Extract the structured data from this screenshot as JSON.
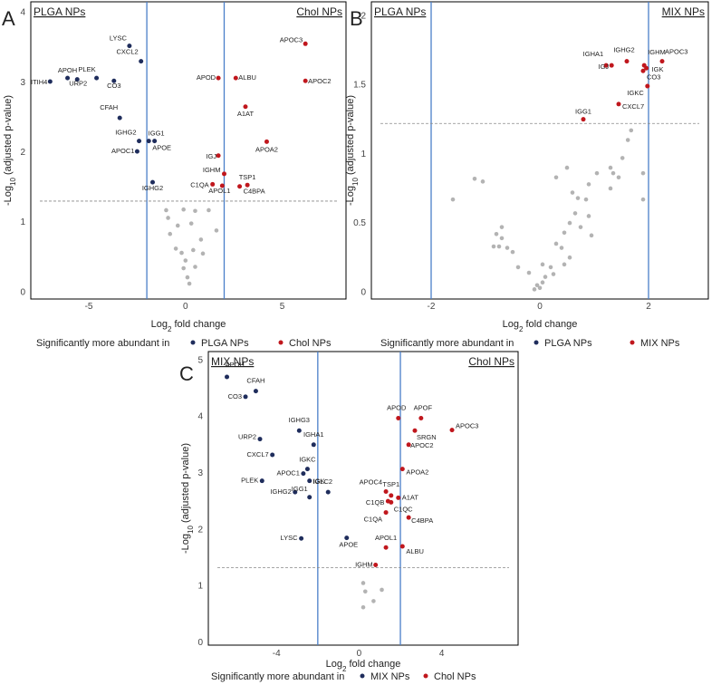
{
  "colors": {
    "sig_left": "#1f2d5c",
    "sig_right": "#c0171d",
    "nonsig": "#b3b3b3",
    "vline": "#4a7fc9",
    "threshold": "#888888"
  },
  "chart_data": [
    {
      "panel": "A",
      "type": "scatter",
      "left_group": "PLGA NPs",
      "right_group": "Chol NPs",
      "xlabel_parts": {
        "pre": "Log",
        "sub": "2",
        "post": " fold change"
      },
      "ylabel_parts": {
        "pre": "-Log",
        "sub": "10",
        "post": " (adjusted p-value)"
      },
      "xlim": [
        -8,
        8.3
      ],
      "ylim": [
        -0.1,
        4.15
      ],
      "xticks": [
        -5,
        0,
        5
      ],
      "yticks": [
        0,
        1,
        2,
        3,
        4
      ],
      "fc_lines": [
        -2,
        2
      ],
      "threshold": 1.3,
      "legend_text": "Significantly more abundant in",
      "points_left": [
        {
          "x": -2.9,
          "y": 3.52,
          "label": "LYSC"
        },
        {
          "x": -2.3,
          "y": 3.3,
          "label": "CXCL2"
        },
        {
          "x": -6.1,
          "y": 3.06,
          "label": "APOH"
        },
        {
          "x": -7.0,
          "y": 3.01,
          "label": "ITIH4"
        },
        {
          "x": -5.6,
          "y": 3.04,
          "label": "URP2"
        },
        {
          "x": -4.6,
          "y": 3.06,
          "label": "PLEK"
        },
        {
          "x": -3.7,
          "y": 3.02,
          "label": "CO3"
        },
        {
          "x": -3.4,
          "y": 2.49,
          "label": "CFAH"
        },
        {
          "x": -1.6,
          "y": 2.16,
          "label": "IGG1"
        },
        {
          "x": -2.4,
          "y": 2.16,
          "label": "IGHG2"
        },
        {
          "x": -1.9,
          "y": 2.16,
          "label": "APOE"
        },
        {
          "x": -2.5,
          "y": 2.01,
          "label": "APOC1"
        },
        {
          "x": -1.7,
          "y": 1.57,
          "label": "IGHG2"
        }
      ],
      "points_right": [
        {
          "x": 6.2,
          "y": 3.55,
          "label": "APOC3"
        },
        {
          "x": 1.7,
          "y": 3.06,
          "label": "APOD"
        },
        {
          "x": 2.6,
          "y": 3.06,
          "label": "ALBU"
        },
        {
          "x": 6.2,
          "y": 3.02,
          "label": "APOC2"
        },
        {
          "x": 3.1,
          "y": 2.65,
          "label": "A1AT"
        },
        {
          "x": 4.2,
          "y": 2.15,
          "label": "APOA2"
        },
        {
          "x": 1.7,
          "y": 1.95,
          "label": "IGJ"
        },
        {
          "x": 2.0,
          "y": 1.69,
          "label": "IGHM"
        },
        {
          "x": 3.2,
          "y": 1.53,
          "label": "TSP1"
        },
        {
          "x": 1.4,
          "y": 1.54,
          "label": "C1QA"
        },
        {
          "x": 1.9,
          "y": 1.52,
          "label": "APOL1"
        },
        {
          "x": 2.8,
          "y": 1.51,
          "label": "C4BPA"
        }
      ],
      "points_nonsig": [
        {
          "x": -1.0,
          "y": 1.17
        },
        {
          "x": -0.1,
          "y": 1.18
        },
        {
          "x": 0.5,
          "y": 1.16
        },
        {
          "x": 1.2,
          "y": 1.17
        },
        {
          "x": -0.9,
          "y": 1.06
        },
        {
          "x": -0.4,
          "y": 0.95
        },
        {
          "x": 0.3,
          "y": 0.98
        },
        {
          "x": 1.6,
          "y": 0.88
        },
        {
          "x": -0.8,
          "y": 0.83
        },
        {
          "x": 0.8,
          "y": 0.75
        },
        {
          "x": -0.5,
          "y": 0.62
        },
        {
          "x": -0.2,
          "y": 0.56
        },
        {
          "x": 0.4,
          "y": 0.6
        },
        {
          "x": 0.9,
          "y": 0.55
        },
        {
          "x": 0.0,
          "y": 0.45
        },
        {
          "x": -0.1,
          "y": 0.34
        },
        {
          "x": 0.5,
          "y": 0.36
        },
        {
          "x": 0.1,
          "y": 0.21
        },
        {
          "x": 0.2,
          "y": 0.12
        }
      ]
    },
    {
      "panel": "B",
      "type": "scatter",
      "left_group": "PLGA NPs",
      "right_group": "MIX NPs",
      "xlabel_parts": {
        "pre": "Log",
        "sub": "2",
        "post": " fold change"
      },
      "ylabel_parts": {
        "pre": "-Log",
        "sub": "10",
        "post": " (adjusted p-value)"
      },
      "xlim": [
        -3.1,
        3.1
      ],
      "ylim": [
        -0.05,
        2.1
      ],
      "xticks": [
        -2,
        0,
        2
      ],
      "yticks": [
        0,
        0.5,
        1,
        1.5,
        2
      ],
      "fc_lines": [
        -2,
        2
      ],
      "threshold": 1.22,
      "legend_text": "Significantly more abundant in",
      "points_left": [],
      "points_right": [
        {
          "x": 1.22,
          "y": 1.64,
          "label": "IGHA1"
        },
        {
          "x": 1.32,
          "y": 1.64,
          "label": "IGJ"
        },
        {
          "x": 1.6,
          "y": 1.67,
          "label": "IGHG2"
        },
        {
          "x": 1.92,
          "y": 1.64,
          "label": "IGHM"
        },
        {
          "x": 2.25,
          "y": 1.67,
          "label": "APOC3"
        },
        {
          "x": 1.96,
          "y": 1.62,
          "label": "IGK"
        },
        {
          "x": 1.9,
          "y": 1.6,
          "label": "CO3"
        },
        {
          "x": 1.98,
          "y": 1.49,
          "label": "IGKC"
        },
        {
          "x": 1.45,
          "y": 1.36,
          "label": "CXCL7"
        },
        {
          "x": 0.8,
          "y": 1.25,
          "label": "IGG1"
        }
      ],
      "points_nonsig": [
        {
          "x": 1.68,
          "y": 1.17
        },
        {
          "x": 1.62,
          "y": 1.1
        },
        {
          "x": 1.52,
          "y": 0.97
        },
        {
          "x": 1.9,
          "y": 0.86
        },
        {
          "x": 1.3,
          "y": 0.9
        },
        {
          "x": 1.35,
          "y": 0.86
        },
        {
          "x": 1.45,
          "y": 0.83
        },
        {
          "x": 1.3,
          "y": 0.75
        },
        {
          "x": 1.05,
          "y": 0.86
        },
        {
          "x": 0.5,
          "y": 0.9
        },
        {
          "x": 0.3,
          "y": 0.83
        },
        {
          "x": 0.9,
          "y": 0.78
        },
        {
          "x": 0.6,
          "y": 0.72
        },
        {
          "x": 0.7,
          "y": 0.68
        },
        {
          "x": 0.85,
          "y": 0.67
        },
        {
          "x": 1.9,
          "y": 0.67
        },
        {
          "x": -1.6,
          "y": 0.67
        },
        {
          "x": -1.2,
          "y": 0.82
        },
        {
          "x": -1.05,
          "y": 0.8
        },
        {
          "x": 0.65,
          "y": 0.57
        },
        {
          "x": 0.9,
          "y": 0.55
        },
        {
          "x": 0.55,
          "y": 0.5
        },
        {
          "x": 0.75,
          "y": 0.47
        },
        {
          "x": 0.45,
          "y": 0.43
        },
        {
          "x": 0.95,
          "y": 0.41
        },
        {
          "x": 0.3,
          "y": 0.35
        },
        {
          "x": 0.4,
          "y": 0.32
        },
        {
          "x": 0.55,
          "y": 0.25
        },
        {
          "x": 0.45,
          "y": 0.2
        },
        {
          "x": 0.2,
          "y": 0.18
        },
        {
          "x": 0.25,
          "y": 0.13
        },
        {
          "x": 0.1,
          "y": 0.11
        },
        {
          "x": 0.05,
          "y": 0.07
        },
        {
          "x": -0.05,
          "y": 0.05
        },
        {
          "x": -0.1,
          "y": 0.02
        },
        {
          "x": 0.0,
          "y": 0.03
        },
        {
          "x": -0.2,
          "y": 0.14
        },
        {
          "x": -0.4,
          "y": 0.18
        },
        {
          "x": -0.7,
          "y": 0.47
        },
        {
          "x": -0.8,
          "y": 0.42
        },
        {
          "x": -0.7,
          "y": 0.39
        },
        {
          "x": -0.85,
          "y": 0.33
        },
        {
          "x": -0.75,
          "y": 0.33
        },
        {
          "x": -0.6,
          "y": 0.32
        },
        {
          "x": -0.5,
          "y": 0.29
        },
        {
          "x": 0.05,
          "y": 0.2
        }
      ]
    },
    {
      "panel": "C",
      "type": "scatter",
      "left_group": "MIX NPs",
      "right_group": "Chol NPs",
      "xlabel_parts": {
        "pre": "Log",
        "sub": "2",
        "post": " fold change"
      },
      "ylabel_parts": {
        "pre": "-Log",
        "sub": "10",
        "post": " (adjusted p-value)"
      },
      "xlim": [
        -7.3,
        7.7
      ],
      "ylim": [
        -0.05,
        5.15
      ],
      "xticks": [
        -4,
        0,
        4
      ],
      "yticks": [
        0,
        1,
        2,
        3,
        4,
        5
      ],
      "fc_lines": [
        -2,
        2
      ],
      "threshold": 1.32,
      "legend_text": "Significantly more abundant in",
      "points_left": [
        {
          "x": -6.4,
          "y": 4.7,
          "label": "APOH"
        },
        {
          "x": -5.0,
          "y": 4.45,
          "label": "CFAH"
        },
        {
          "x": -5.5,
          "y": 4.35,
          "label": "CO3"
        },
        {
          "x": -2.9,
          "y": 3.75,
          "label": "IGHG3"
        },
        {
          "x": -2.2,
          "y": 3.5,
          "label": "IGHA1"
        },
        {
          "x": -4.8,
          "y": 3.6,
          "label": "URP2"
        },
        {
          "x": -4.2,
          "y": 3.32,
          "label": "CXCL7"
        },
        {
          "x": -2.5,
          "y": 3.07,
          "label": "IGKC"
        },
        {
          "x": -2.7,
          "y": 2.99,
          "label": "APOC1"
        },
        {
          "x": -2.4,
          "y": 2.86,
          "label": "IGK"
        },
        {
          "x": -4.7,
          "y": 2.86,
          "label": "PLEK"
        },
        {
          "x": -3.1,
          "y": 2.66,
          "label": "IGHG2"
        },
        {
          "x": -1.5,
          "y": 2.66,
          "label": "IGLC2"
        },
        {
          "x": -2.4,
          "y": 2.57,
          "label": "IGG1"
        },
        {
          "x": -2.8,
          "y": 1.84,
          "label": "LYSC"
        },
        {
          "x": -0.6,
          "y": 1.85,
          "label": "APOE"
        }
      ],
      "points_right": [
        {
          "x": 1.9,
          "y": 3.97,
          "label": "APOD"
        },
        {
          "x": 3.0,
          "y": 3.97,
          "label": "APOF"
        },
        {
          "x": 4.5,
          "y": 3.76,
          "label": "APOC3"
        },
        {
          "x": 2.7,
          "y": 3.75,
          "label": "SRGN"
        },
        {
          "x": 2.4,
          "y": 3.5,
          "label": "APOC2"
        },
        {
          "x": 2.1,
          "y": 3.07,
          "label": "APOA2"
        },
        {
          "x": 1.3,
          "y": 2.67,
          "label": "APOC4"
        },
        {
          "x": 1.55,
          "y": 2.6,
          "label": "TSP1"
        },
        {
          "x": 1.9,
          "y": 2.56,
          "label": "A1AT"
        },
        {
          "x": 1.4,
          "y": 2.5,
          "label": "C1QB"
        },
        {
          "x": 1.55,
          "y": 2.48,
          "label": "C1QC"
        },
        {
          "x": 1.3,
          "y": 2.3,
          "label": "C1QA"
        },
        {
          "x": 2.4,
          "y": 2.21,
          "label": "C4BPA"
        },
        {
          "x": 1.3,
          "y": 1.68,
          "label": "APOL1"
        },
        {
          "x": 2.1,
          "y": 1.7,
          "label": "ALBU"
        },
        {
          "x": 0.8,
          "y": 1.37,
          "label": "IGHM"
        }
      ],
      "points_nonsig": [
        {
          "x": 0.2,
          "y": 1.05
        },
        {
          "x": 1.1,
          "y": 0.93
        },
        {
          "x": 0.3,
          "y": 0.9
        },
        {
          "x": 0.7,
          "y": 0.73
        },
        {
          "x": 0.2,
          "y": 0.62
        }
      ]
    }
  ]
}
